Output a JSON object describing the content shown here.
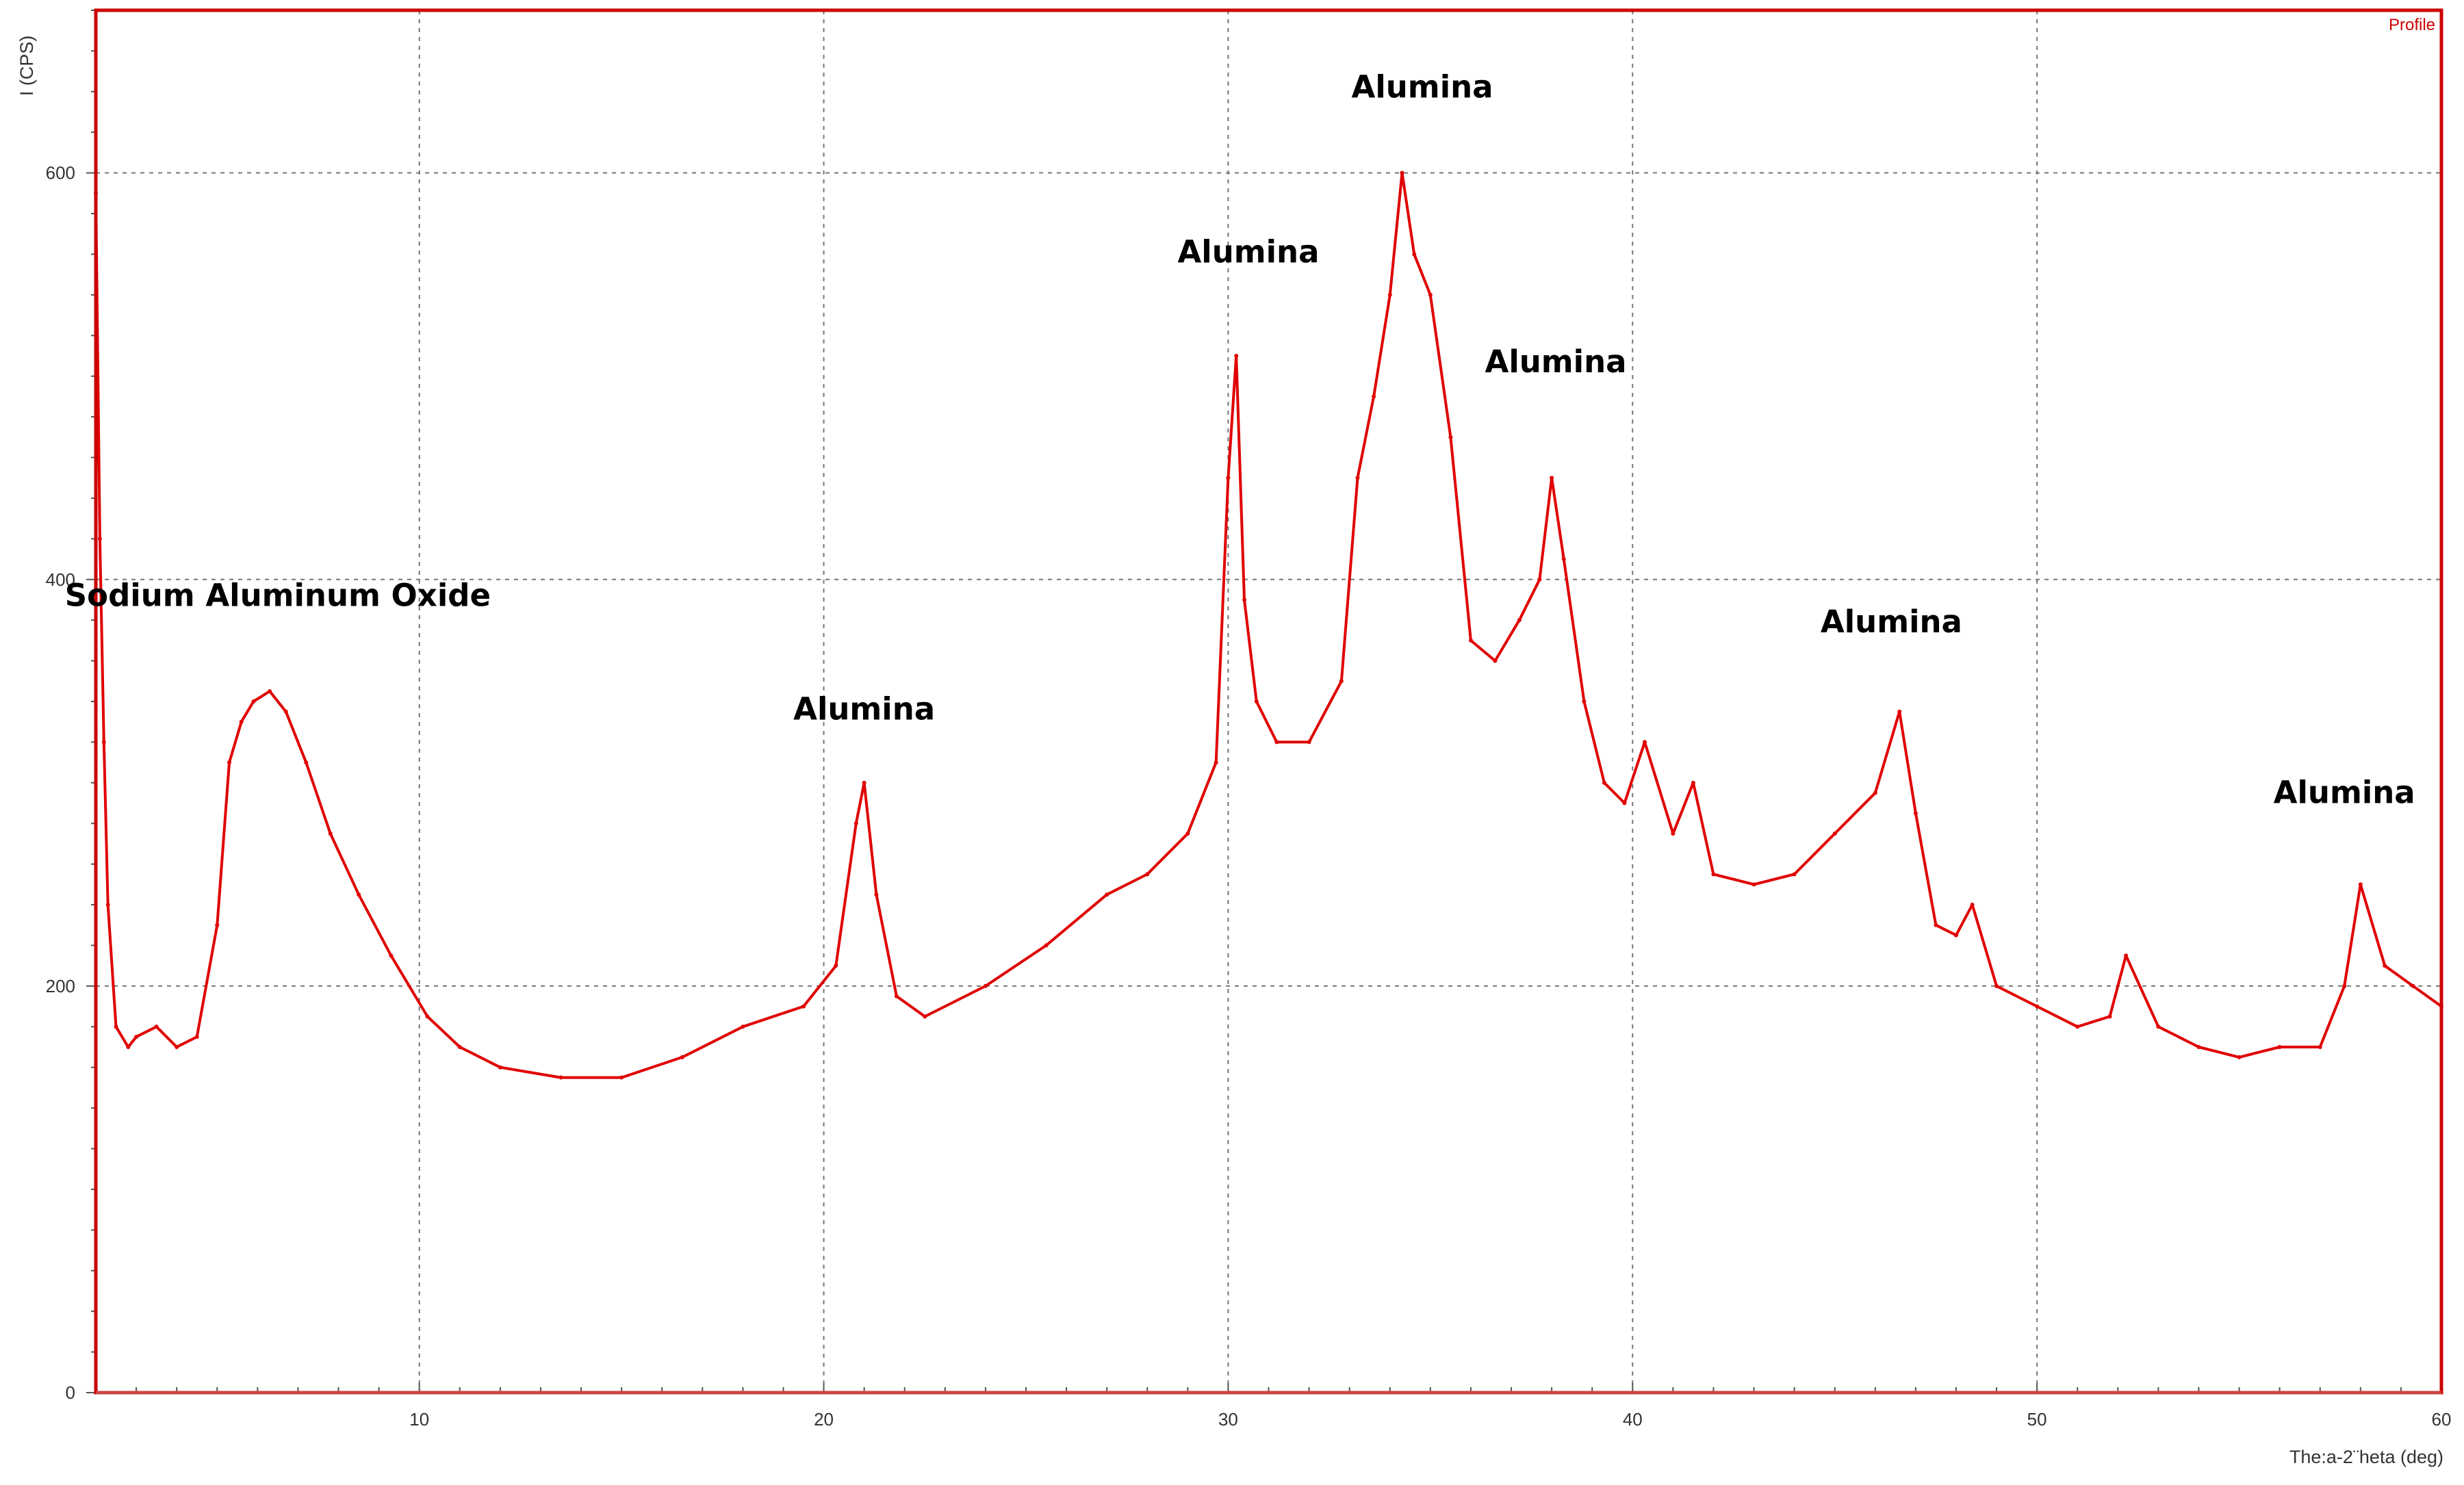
{
  "chart_data": {
    "type": "line",
    "xlabel": "The:a-2¨heta (deg)",
    "ylabel": "I (CPS)",
    "legend": "Profile",
    "legend_position": "top-right",
    "grid": true,
    "xlim": [
      2,
      60
    ],
    "ylim": [
      0,
      680
    ],
    "x_ticks": [
      10,
      20,
      30,
      40,
      50,
      60
    ],
    "y_ticks": [
      0,
      200,
      400,
      600
    ],
    "x_tick_labels": [
      "10",
      "20",
      "30",
      "40",
      "50",
      "60"
    ],
    "y_tick_labels": [
      "0",
      "200",
      "400",
      "600"
    ],
    "line_color": "#e00000",
    "frame_color": "#cc0000",
    "series": [
      {
        "x": [
          2.0,
          2.1,
          2.2,
          2.3,
          2.5,
          2.8,
          3.0,
          3.5,
          4.0,
          4.5,
          5.0,
          5.3,
          5.6,
          5.9,
          6.3,
          6.7,
          7.2,
          7.8,
          8.5,
          9.3,
          10.2,
          11.0,
          12.0,
          13.5,
          15.0,
          16.5,
          18.0,
          19.5,
          20.3,
          20.8,
          21.0,
          21.3,
          21.8,
          22.5,
          24.0,
          25.5,
          27.0,
          28.0,
          29.0,
          29.7,
          30.0,
          30.2,
          30.4,
          30.7,
          31.2,
          32.0,
          32.8,
          33.2,
          33.6,
          34.0,
          34.3,
          34.6,
          35.0,
          35.5,
          36.0,
          36.6,
          37.2,
          37.7,
          38.0,
          38.3,
          38.8,
          39.3,
          39.8,
          40.3,
          41.0,
          41.5,
          42.0,
          43.0,
          44.0,
          45.0,
          46.0,
          46.6,
          47.0,
          47.5,
          48.0,
          48.4,
          49.0,
          50.0,
          51.0,
          51.8,
          52.2,
          53.0,
          54.0,
          55.0,
          56.0,
          57.0,
          57.6,
          58.0,
          58.6,
          59.3,
          60.0
        ],
        "y": [
          590,
          420,
          320,
          240,
          180,
          170,
          175,
          180,
          170,
          175,
          230,
          310,
          330,
          340,
          345,
          335,
          310,
          275,
          245,
          215,
          185,
          170,
          160,
          155,
          155,
          165,
          180,
          190,
          210,
          280,
          300,
          245,
          195,
          185,
          200,
          220,
          245,
          255,
          275,
          310,
          450,
          510,
          390,
          340,
          320,
          320,
          350,
          450,
          490,
          540,
          600,
          560,
          540,
          470,
          370,
          360,
          380,
          400,
          450,
          410,
          340,
          300,
          290,
          320,
          275,
          300,
          255,
          250,
          255,
          275,
          295,
          335,
          285,
          230,
          225,
          240,
          200,
          190,
          180,
          185,
          215,
          180,
          170,
          165,
          170,
          170,
          200,
          250,
          210,
          200,
          190
        ]
      }
    ],
    "annotations": [
      {
        "text": "Sodium Aluminum Oxide",
        "x": 6.5,
        "y": 387
      },
      {
        "text": "Alumina",
        "x": 21.0,
        "y": 331
      },
      {
        "text": "Alumina",
        "x": 30.5,
        "y": 556
      },
      {
        "text": "Alumina",
        "x": 34.8,
        "y": 637
      },
      {
        "text": "Alumina",
        "x": 38.1,
        "y": 502
      },
      {
        "text": "Alumina",
        "x": 46.4,
        "y": 374
      },
      {
        "text": "Alumina",
        "x": 57.6,
        "y": 290
      }
    ]
  }
}
